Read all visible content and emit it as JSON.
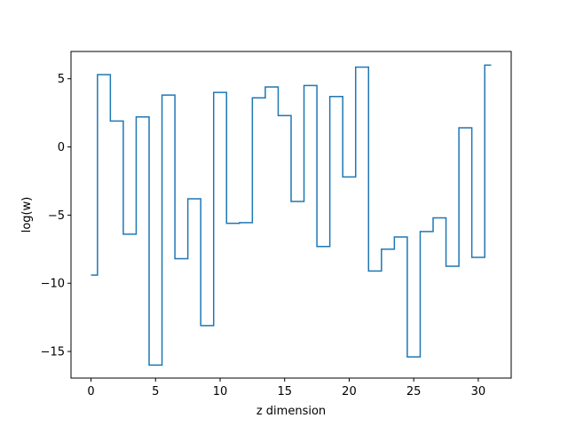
{
  "chart_data": {
    "type": "line",
    "drawstyle": "steps-mid",
    "title": "",
    "xlabel": "z dimension",
    "ylabel": "log(w)",
    "xlim": [
      -1.55,
      32.55
    ],
    "ylim": [
      -16.95,
      7.0
    ],
    "xticks": [
      0,
      5,
      10,
      15,
      20,
      25,
      30
    ],
    "yticks": [
      -15,
      -10,
      -5,
      0,
      5
    ],
    "xtick_labels": [
      "0",
      "5",
      "10",
      "15",
      "20",
      "25",
      "30"
    ],
    "ytick_labels": [
      "−15",
      "−10",
      "−5",
      "0",
      "5"
    ],
    "grid": false,
    "color": "#1f77b4",
    "series": [
      {
        "x": [
          0,
          1,
          2,
          3,
          4,
          5,
          6,
          7,
          8,
          9,
          10,
          11,
          12,
          13,
          14,
          15,
          16,
          17,
          18,
          19,
          20,
          21,
          22,
          23,
          24,
          25,
          26,
          27,
          28,
          29,
          30,
          31
        ],
        "values": [
          -9.4,
          5.3,
          1.9,
          -6.4,
          2.2,
          -16.0,
          3.8,
          -8.2,
          -3.8,
          -13.1,
          4.0,
          -5.6,
          -5.55,
          3.6,
          4.4,
          2.3,
          -4.0,
          4.5,
          -7.3,
          3.7,
          -2.2,
          5.85,
          -9.1,
          -7.5,
          -6.6,
          -15.4,
          -6.2,
          -5.2,
          -8.75,
          1.4,
          -8.1,
          6.0
        ]
      }
    ]
  }
}
